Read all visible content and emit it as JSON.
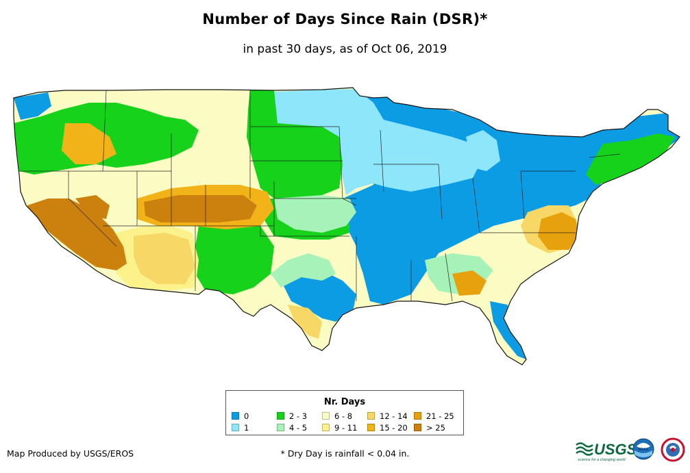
{
  "title": "Number of Days Since Rain (DSR)*",
  "subtitle": "in past 30 days, as of Oct 06, 2019",
  "legend": {
    "title": "Nr. Days",
    "items": [
      {
        "label": "0",
        "color": "#0b9ce4"
      },
      {
        "label": "1",
        "color": "#8ee6fb"
      },
      {
        "label": "2 - 3",
        "color": "#16d21a"
      },
      {
        "label": "4 - 5",
        "color": "#a6f2b9"
      },
      {
        "label": "6 - 8",
        "color": "#fbfbc4"
      },
      {
        "label": "9 - 11",
        "color": "#fbf28c"
      },
      {
        "label": "12 - 14",
        "color": "#f7d766"
      },
      {
        "label": "15 - 20",
        "color": "#f2b319"
      },
      {
        "label": "21 - 25",
        "color": "#e7a10d"
      },
      {
        "label": "> 25",
        "color": "#cc800e"
      }
    ]
  },
  "credit": "Map Produced by USGS/EROS",
  "footnote": "* Dry Day is rainfall < 0.04 in.",
  "logos": {
    "usgs": "USGS",
    "usgs_tagline": "science for a changing world",
    "noaa": "NOAA"
  }
}
